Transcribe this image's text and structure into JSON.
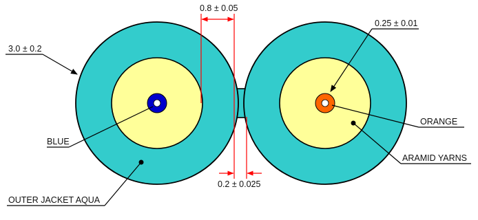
{
  "labels": {
    "dim_outer_diameter": "3.0 ± 0.2",
    "dim_buffer_gap": "0.8 ± 0.05",
    "dim_fiber": "0.25 ± 0.01",
    "dim_web": "0.2 ± 0.025",
    "fiber_left": "BLUE",
    "fiber_right": "ORANGE",
    "strength_member": "ARAMID YARNS",
    "jacket": "OUTER JACKET AQUA"
  },
  "colors": {
    "jacket": "#33cccc",
    "yarns": "#ffff99",
    "fiber_left": "#0000cc",
    "fiber_right": "#ff6600",
    "dimension_line": "#ff0000",
    "outline": "#000000"
  }
}
